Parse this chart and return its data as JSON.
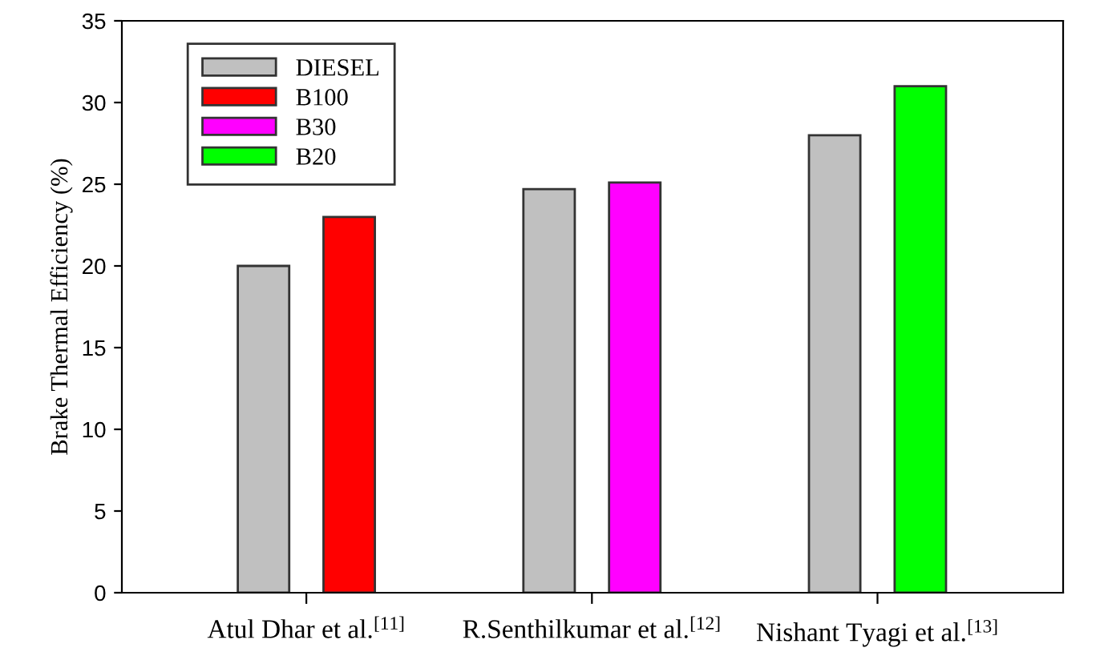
{
  "chart_data": {
    "type": "bar",
    "ylabel": "Brake Thermal Efficiency (%)",
    "categories": [
      "Atul Dhar et al.$^{[11]}$",
      "R.Senthilkumar et al.$^{[12]}$",
      "Nishant Tyagi et al.$^{[13]}$"
    ],
    "series": [
      {
        "name": "DIESEL",
        "color": "#c0c0c0",
        "values": [
          20,
          24.7,
          28
        ]
      },
      {
        "name": "B100",
        "color": "#ff0000",
        "values": [
          23,
          null,
          null
        ]
      },
      {
        "name": "B30",
        "color": "#ff00ff",
        "values": [
          null,
          25.1,
          null
        ]
      },
      {
        "name": "B20",
        "color": "#00ff00",
        "values": [
          null,
          null,
          31
        ]
      }
    ],
    "ylim": [
      0,
      35
    ],
    "yticks": [
      0,
      5,
      10,
      15,
      20,
      25,
      30,
      35
    ],
    "grid": false,
    "legend": "top left"
  }
}
